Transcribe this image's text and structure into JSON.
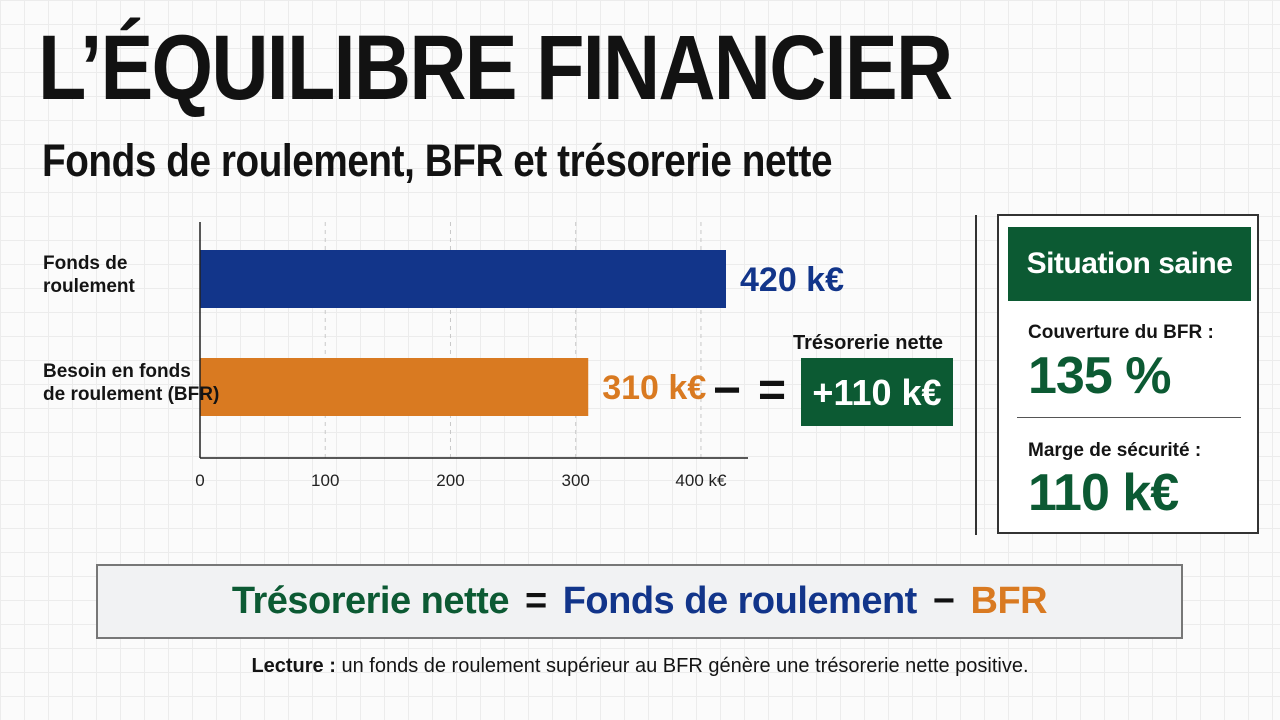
{
  "title": "L’ÉQUILIBRE FINANCIER",
  "subtitle": "Fonds de roulement, BFR et trésorerie nette",
  "chart_data": {
    "type": "bar",
    "orientation": "horizontal",
    "categories": [
      [
        "Fonds de",
        "roulement"
      ],
      [
        "Besoin en fonds",
        "de roulement (BFR)"
      ]
    ],
    "values": [
      420,
      310
    ],
    "value_labels": [
      "420 k€",
      "310 k€"
    ],
    "colors": [
      "#12358a",
      "#d97a21"
    ],
    "xlim": [
      0,
      420
    ],
    "ticks": [
      0,
      100,
      200,
      300,
      400
    ],
    "tick_labels": [
      "0",
      "100",
      "200",
      "300",
      "400 k€"
    ],
    "grid": true,
    "operators": [
      "−",
      "="
    ],
    "result": {
      "label": "Trésorerie nette",
      "value": "+110 k€",
      "color": "#0c5a33"
    }
  },
  "panel": {
    "badge": "Situation saine",
    "metrics": [
      {
        "label": "Couverture du BFR :",
        "value": "135 %"
      },
      {
        "label": "Marge de sécurité :",
        "value": "110 k€"
      }
    ]
  },
  "formula": {
    "left": "Trésorerie nette",
    "equals": "=",
    "term1": "Fonds de roulement",
    "minus": "−",
    "term2": "BFR"
  },
  "note": {
    "lead": "Lecture :",
    "text": " un fonds de roulement supérieur au BFR génère une trésorerie nette positive."
  }
}
